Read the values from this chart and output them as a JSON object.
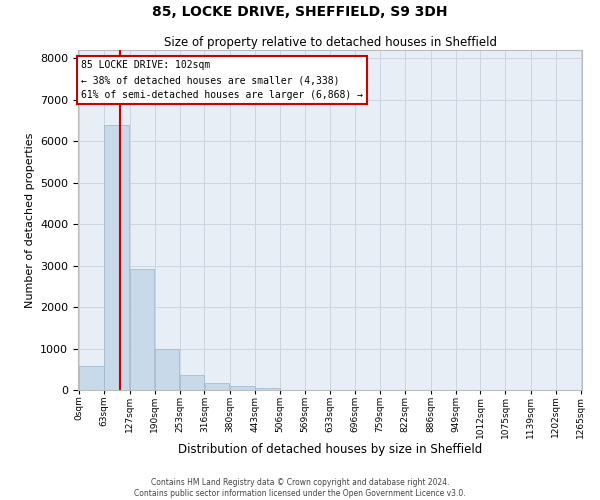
{
  "title1": "85, LOCKE DRIVE, SHEFFIELD, S9 3DH",
  "title2": "Size of property relative to detached houses in Sheffield",
  "xlabel": "Distribution of detached houses by size in Sheffield",
  "ylabel": "Number of detached properties",
  "bar_color": "#c8d9ea",
  "bar_edge_color": "#9ab5cc",
  "bin_labels": [
    "0sqm",
    "63sqm",
    "127sqm",
    "190sqm",
    "253sqm",
    "316sqm",
    "380sqm",
    "443sqm",
    "506sqm",
    "569sqm",
    "633sqm",
    "696sqm",
    "759sqm",
    "822sqm",
    "886sqm",
    "949sqm",
    "1012sqm",
    "1075sqm",
    "1139sqm",
    "1202sqm",
    "1265sqm"
  ],
  "bar_values": [
    570,
    6400,
    2920,
    980,
    360,
    170,
    90,
    60,
    0,
    0,
    0,
    0,
    0,
    0,
    0,
    0,
    0,
    0,
    0,
    0
  ],
  "bin_edges": [
    0,
    63,
    127,
    190,
    253,
    316,
    380,
    443,
    506,
    569,
    633,
    696,
    759,
    822,
    886,
    949,
    1012,
    1075,
    1139,
    1202,
    1265
  ],
  "property_size": 102,
  "vline_color": "#cc0000",
  "annotation_line1": "85 LOCKE DRIVE: 102sqm",
  "annotation_line2": "← 38% of detached houses are smaller (4,338)",
  "annotation_line3": "61% of semi-detached houses are larger (6,868) →",
  "ylim": [
    0,
    8200
  ],
  "yticks": [
    0,
    1000,
    2000,
    3000,
    4000,
    5000,
    6000,
    7000,
    8000
  ],
  "grid_color": "#cdd5e3",
  "bg_color": "#e8eef6",
  "footer1": "Contains HM Land Registry data © Crown copyright and database right 2024.",
  "footer2": "Contains public sector information licensed under the Open Government Licence v3.0."
}
